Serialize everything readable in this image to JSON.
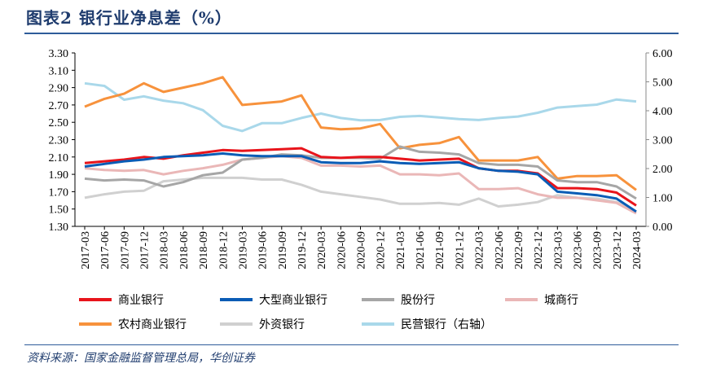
{
  "title": "图表2 银行业净息差（%）",
  "source": "资料来源：国家金融监督管理总局，华创证券",
  "chart_data": {
    "type": "line",
    "title": "",
    "x": [
      "2017-03",
      "2017-06",
      "2017-09",
      "2017-12",
      "2018-03",
      "2018-06",
      "2018-09",
      "2018-12",
      "2019-03",
      "2019-06",
      "2019-09",
      "2019-12",
      "2020-03",
      "2020-06",
      "2020-09",
      "2020-12",
      "2021-03",
      "2021-06",
      "2021-09",
      "2021-12",
      "2022-03",
      "2022-06",
      "2022-09",
      "2022-12",
      "2023-03",
      "2023-06",
      "2023-09",
      "2023-12",
      "2024-03"
    ],
    "y_left": {
      "range": [
        1.3,
        3.3
      ],
      "ticks": [
        "1.30",
        "1.50",
        "1.70",
        "1.90",
        "2.10",
        "2.30",
        "2.50",
        "2.70",
        "2.90",
        "3.10",
        "3.30"
      ]
    },
    "y_right": {
      "range": [
        0,
        6
      ],
      "ticks": [
        "0.00",
        "1.00",
        "2.00",
        "3.00",
        "4.00",
        "5.00",
        "6.00"
      ]
    },
    "grid": false,
    "legend_position": "bottom",
    "series": [
      {
        "name": "商业银行",
        "color": "#e8141b",
        "axis": "left",
        "values": [
          2.03,
          2.05,
          2.07,
          2.1,
          2.08,
          2.12,
          2.15,
          2.18,
          2.17,
          2.18,
          2.19,
          2.2,
          2.1,
          2.09,
          2.1,
          2.1,
          2.08,
          2.06,
          2.07,
          2.08,
          1.97,
          1.94,
          1.94,
          1.91,
          1.74,
          1.74,
          1.73,
          1.69,
          1.54
        ]
      },
      {
        "name": "大型商业银行",
        "color": "#0a5cb5",
        "axis": "left",
        "values": [
          1.99,
          2.02,
          2.05,
          2.07,
          2.1,
          2.11,
          2.12,
          2.14,
          2.12,
          2.11,
          2.11,
          2.11,
          2.04,
          2.03,
          2.03,
          2.05,
          2.03,
          2.02,
          2.03,
          2.04,
          1.97,
          1.94,
          1.93,
          1.9,
          1.7,
          1.68,
          1.66,
          1.62,
          1.47
        ]
      },
      {
        "name": "股份行",
        "color": "#a6a6a6",
        "axis": "left",
        "values": [
          1.85,
          1.83,
          1.84,
          1.83,
          1.76,
          1.81,
          1.89,
          1.92,
          2.07,
          2.09,
          2.13,
          2.12,
          2.09,
          2.09,
          2.09,
          2.08,
          2.22,
          2.16,
          2.15,
          2.13,
          2.03,
          2.01,
          2.01,
          1.99,
          1.83,
          1.81,
          1.81,
          1.76,
          1.62
        ]
      },
      {
        "name": "城商行",
        "color": "#eab7b7",
        "axis": "left",
        "values": [
          1.97,
          1.95,
          1.94,
          1.95,
          1.9,
          1.94,
          1.97,
          2.01,
          2.07,
          2.09,
          2.11,
          2.09,
          2.0,
          2.0,
          1.99,
          2.0,
          1.9,
          1.9,
          1.89,
          1.91,
          1.73,
          1.73,
          1.74,
          1.67,
          1.63,
          1.63,
          1.6,
          1.57,
          1.45
        ]
      },
      {
        "name": "农村商业银行",
        "color": "#f7923c",
        "axis": "left",
        "values": [
          2.68,
          2.77,
          2.83,
          2.95,
          2.85,
          2.9,
          2.95,
          3.02,
          2.7,
          2.72,
          2.74,
          2.81,
          2.44,
          2.42,
          2.43,
          2.48,
          2.2,
          2.24,
          2.26,
          2.33,
          2.06,
          2.06,
          2.06,
          2.1,
          1.85,
          1.88,
          1.88,
          1.89,
          1.72
        ]
      },
      {
        "name": "外资银行",
        "color": "#d0d0d0",
        "axis": "left",
        "values": [
          1.63,
          1.67,
          1.7,
          1.71,
          1.82,
          1.84,
          1.86,
          1.86,
          1.86,
          1.84,
          1.84,
          1.78,
          1.7,
          1.67,
          1.64,
          1.61,
          1.56,
          1.56,
          1.57,
          1.55,
          1.62,
          1.53,
          1.55,
          1.58,
          1.66,
          1.63,
          1.62,
          1.58,
          1.47
        ]
      },
      {
        "name": "民营银行（右轴）",
        "color": "#a9d8ea",
        "axis": "right",
        "values": [
          4.95,
          4.86,
          4.38,
          4.5,
          4.35,
          4.26,
          4.02,
          3.48,
          3.3,
          3.57,
          3.57,
          3.75,
          3.9,
          3.75,
          3.67,
          3.68,
          3.79,
          3.82,
          3.77,
          3.71,
          3.68,
          3.75,
          3.8,
          3.93,
          4.11,
          4.16,
          4.21,
          4.39,
          4.32
        ]
      }
    ]
  }
}
